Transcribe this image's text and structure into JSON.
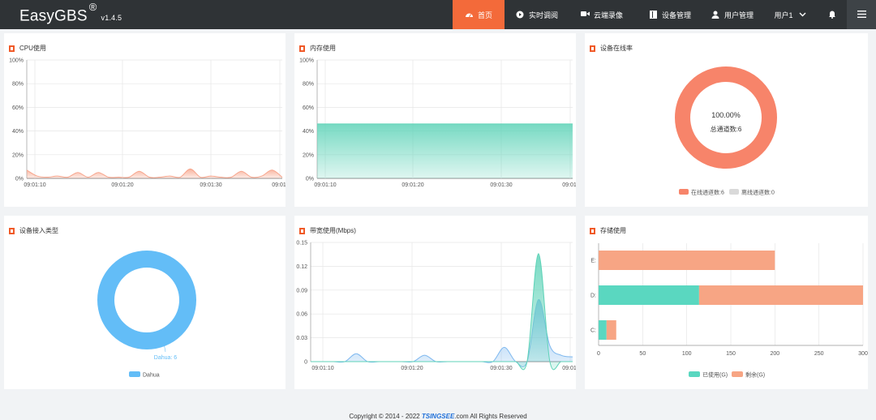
{
  "header": {
    "brand": "EasyGBS",
    "registered": "®",
    "version": "v1.4.5",
    "nav": [
      {
        "label": "首页",
        "icon": "dashboard-icon",
        "active": true
      },
      {
        "label": "实时调阅",
        "icon": "play-circle-icon",
        "active": false
      },
      {
        "label": "云端录像",
        "icon": "video-camera-icon",
        "active": false
      },
      {
        "label": "设备管理",
        "icon": "device-icon",
        "active": false
      },
      {
        "label": "用户管理",
        "icon": "user-icon",
        "active": false
      }
    ],
    "user": "用户1",
    "accent": "#f36a3a"
  },
  "cpu": {
    "title": "CPU使用",
    "chart_data": {
      "type": "area",
      "y_ticks": [
        "100%",
        "80%",
        "60%",
        "40%",
        "20%",
        "0%"
      ],
      "x_ticks": [
        "09:01:10",
        "09:01:20",
        "09:01:30",
        "09:01:"
      ],
      "ylim": [
        0,
        100
      ],
      "series": [
        {
          "values": [
            7,
            2,
            1,
            2,
            1,
            5,
            1,
            5,
            1,
            1,
            1,
            6,
            1,
            1,
            2,
            1,
            8,
            1,
            2,
            1,
            1,
            6,
            1,
            2,
            7,
            1
          ]
        }
      ],
      "color": "#f7a58c"
    }
  },
  "memory": {
    "title": "内存使用",
    "chart_data": {
      "type": "area",
      "y_ticks": [
        "100%",
        "80%",
        "60%",
        "40%",
        "20%",
        "0%"
      ],
      "x_ticks": [
        "09:01:10",
        "09:01:20",
        "09:01:30",
        "09:01:"
      ],
      "ylim": [
        0,
        100
      ],
      "series": [
        {
          "values": [
            46,
            46,
            46,
            46,
            46,
            46,
            46,
            46
          ]
        }
      ],
      "color": "#5fd3b8"
    }
  },
  "online": {
    "title": "设备在线率",
    "percent": "100.00%",
    "total_label": "总通道数:6",
    "chart_data": {
      "type": "pie",
      "slices": [
        {
          "name": "在线通道数:6",
          "value": 6,
          "color": "#f7846a"
        },
        {
          "name": "离线通道数:0",
          "value": 0,
          "color": "#d9d9d9"
        }
      ]
    }
  },
  "access": {
    "title": "设备接入类型",
    "slice_label": "Dahua: 6",
    "chart_data": {
      "type": "pie",
      "slices": [
        {
          "name": "Dahua",
          "value": 6,
          "color": "#63bdf7"
        }
      ]
    }
  },
  "bandwidth": {
    "title": "带宽使用(Mbps)",
    "chart_data": {
      "type": "area",
      "y_ticks": [
        "0.15",
        "0.12",
        "0.09",
        "0.06",
        "0.03",
        "0"
      ],
      "x_ticks": [
        "09:01:10",
        "09:01:20",
        "09:01:30",
        "09:01:"
      ],
      "ylim": [
        0,
        0.15
      ],
      "series": [
        {
          "values": [
            0,
            0,
            0,
            0,
            0.01,
            0,
            0,
            0,
            0,
            0,
            0.008,
            0,
            0,
            0,
            0,
            0,
            0,
            0.018,
            0,
            0,
            0.078,
            0.02,
            0.008,
            0.006
          ],
          "color": "#7eb8ef"
        },
        {
          "values": [
            0,
            0,
            0,
            0,
            0,
            0,
            0,
            0,
            0,
            0,
            0,
            0,
            0,
            0,
            0,
            0,
            0,
            0,
            0,
            0,
            0.136,
            0,
            0,
            0
          ],
          "color": "#5fd3b8"
        }
      ]
    }
  },
  "storage": {
    "title": "存储使用",
    "chart_data": {
      "type": "bar",
      "categories": [
        "E:",
        "D:",
        "C:"
      ],
      "x_ticks": [
        "0",
        "50",
        "100",
        "150",
        "200",
        "250",
        "300"
      ],
      "xlim": [
        0,
        300
      ],
      "series": [
        {
          "name": "已使用(G)",
          "values": [
            0,
            114,
            9
          ],
          "color": "#5ad7c0"
        },
        {
          "name": "剩余(G)",
          "values": [
            200,
            186,
            11
          ],
          "color": "#f7a584"
        }
      ]
    }
  },
  "footer": {
    "prefix": "Copyright © 2014 - 2022 ",
    "company": "TSINGSEE",
    "suffix": ".com All Rights Reserved"
  }
}
